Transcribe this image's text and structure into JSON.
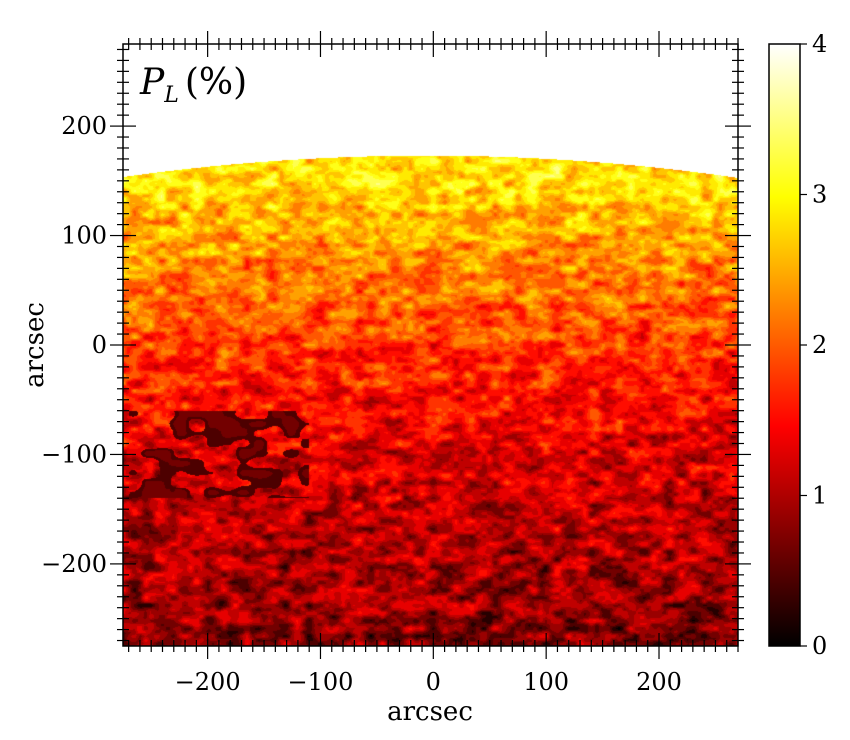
{
  "chart_data": {
    "type": "heatmap",
    "panel_label": {
      "symbol": "P",
      "subscript": "L",
      "unit": "(%)"
    },
    "xlabel": "arcsec",
    "ylabel": "arcsec",
    "xlim": [
      -275,
      270
    ],
    "ylim": [
      -275,
      275
    ],
    "x_major_ticks": [
      -200,
      -100,
      0,
      100,
      200
    ],
    "x_tick_labels": [
      "−200",
      "−100",
      "0",
      "100",
      "200"
    ],
    "y_major_ticks": [
      -200,
      -100,
      0,
      100,
      200
    ],
    "y_tick_labels": [
      "−200",
      "−100",
      "0",
      "100",
      "200"
    ],
    "minor_tick_step": 10,
    "limb": {
      "center_x": -5,
      "center_y": -1700,
      "radius": 1873
    },
    "colormap": "hot",
    "colorbar": {
      "range": [
        0,
        4
      ],
      "ticks": [
        0,
        1,
        2,
        3,
        4
      ],
      "tick_labels": [
        "0",
        "1",
        "2",
        "3",
        "4"
      ]
    },
    "polarization_trend": {
      "description": "linear polarization P_L in percent rises from about 0.8 at the bottom to about 3 near the limb",
      "y": [
        -275,
        -200,
        -100,
        0,
        100,
        150
      ],
      "value": [
        0.75,
        0.95,
        1.25,
        1.8,
        2.45,
        2.85
      ]
    },
    "dark_region": {
      "x_range": [
        -270,
        -110
      ],
      "y_range": [
        -140,
        -60
      ],
      "value": 0.45
    }
  }
}
